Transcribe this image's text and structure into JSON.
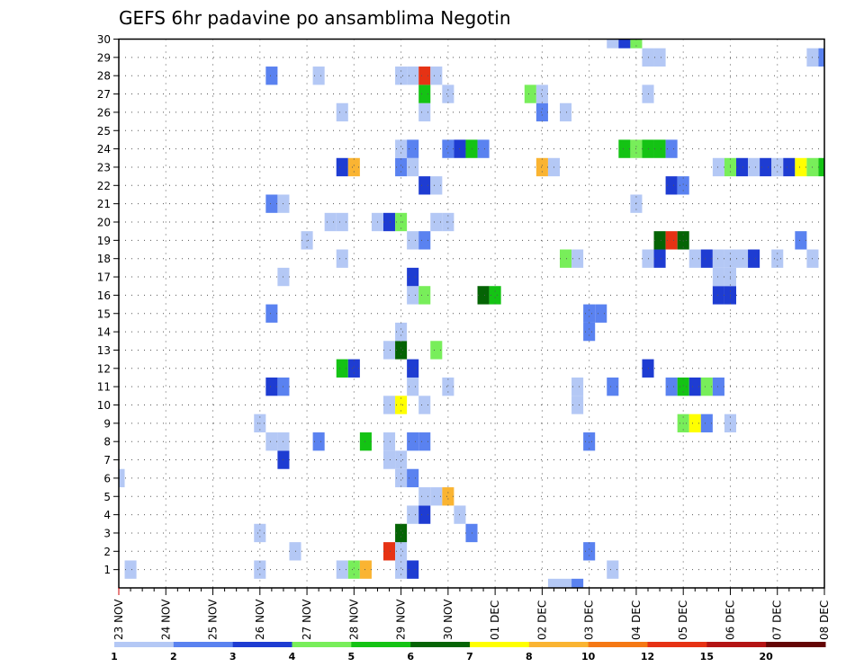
{
  "chart_data": {
    "type": "heatmap",
    "title": "GEFS 6hr padavine po ansamblima Negotin",
    "x_tick_labels": [
      "23 NOV",
      "24 NOV",
      "25 NOV",
      "26 NOV",
      "27 NOV",
      "28 NOV",
      "29 NOV",
      "30 NOV",
      "01 DEC",
      "02 DEC",
      "03 DEC",
      "04 DEC",
      "05 DEC",
      "06 DEC",
      "07 DEC",
      "08 DEC"
    ],
    "y_tick_labels": [
      "1",
      "2",
      "3",
      "4",
      "5",
      "6",
      "7",
      "8",
      "9",
      "10",
      "11",
      "12",
      "13",
      "14",
      "15",
      "16",
      "17",
      "18",
      "19",
      "20",
      "21",
      "22",
      "23",
      "24",
      "25",
      "26",
      "27",
      "28",
      "29",
      "30"
    ],
    "x_unit": "6-hour steps from 23 NOV",
    "x_range": [
      0,
      60
    ],
    "y_range": [
      0,
      30
    ],
    "grid": true,
    "color_levels": [
      {
        "label": "1",
        "color": "#b4c8f5"
      },
      {
        "label": "2",
        "color": "#5a82f0"
      },
      {
        "label": "3",
        "color": "#1e3cd2"
      },
      {
        "label": "4",
        "color": "#78ee5a"
      },
      {
        "label": "5",
        "color": "#14c314"
      },
      {
        "label": "6",
        "color": "#056405"
      },
      {
        "label": "7",
        "color": "#ffff00"
      },
      {
        "label": "8",
        "color": "#fab432"
      },
      {
        "label": "10",
        "color": "#f57814"
      },
      {
        "label": "12",
        "color": "#e63214"
      },
      {
        "label": "15",
        "color": "#b41414"
      },
      {
        "label": "20",
        "color": "#640505"
      }
    ],
    "cells": [
      [
        1,
        1,
        0
      ],
      [
        1,
        12,
        0
      ],
      [
        1,
        19,
        0
      ],
      [
        1,
        20,
        3
      ],
      [
        1,
        21,
        7
      ],
      [
        1,
        24,
        0
      ],
      [
        1,
        25,
        2
      ],
      [
        1,
        42,
        0
      ],
      [
        2,
        15,
        0
      ],
      [
        2,
        23,
        9
      ],
      [
        2,
        24,
        0
      ],
      [
        2,
        40,
        1
      ],
      [
        3,
        12,
        0
      ],
      [
        3,
        24,
        5
      ],
      [
        3,
        30,
        1
      ],
      [
        4,
        25,
        0
      ],
      [
        4,
        26,
        2
      ],
      [
        4,
        29,
        0
      ],
      [
        5,
        26,
        0
      ],
      [
        5,
        27,
        0
      ],
      [
        5,
        28,
        7
      ],
      [
        6,
        0,
        0
      ],
      [
        6,
        24,
        0
      ],
      [
        6,
        25,
        1
      ],
      [
        7,
        14,
        2
      ],
      [
        7,
        23,
        0
      ],
      [
        7,
        24,
        0
      ],
      [
        8,
        13,
        0
      ],
      [
        8,
        14,
        0
      ],
      [
        8,
        17,
        1
      ],
      [
        8,
        21,
        4
      ],
      [
        8,
        23,
        0
      ],
      [
        8,
        25,
        1
      ],
      [
        8,
        26,
        1
      ],
      [
        8,
        40,
        1
      ],
      [
        9,
        12,
        0
      ],
      [
        9,
        48,
        3
      ],
      [
        9,
        49,
        6
      ],
      [
        9,
        50,
        1
      ],
      [
        9,
        52,
        0
      ],
      [
        10,
        23,
        0
      ],
      [
        10,
        24,
        6
      ],
      [
        10,
        26,
        0
      ],
      [
        10,
        39,
        0
      ],
      [
        11,
        13,
        2
      ],
      [
        11,
        14,
        1
      ],
      [
        11,
        25,
        0
      ],
      [
        11,
        28,
        0
      ],
      [
        11,
        39,
        0
      ],
      [
        11,
        42,
        1
      ],
      [
        11,
        47,
        1
      ],
      [
        11,
        48,
        4
      ],
      [
        11,
        49,
        2
      ],
      [
        11,
        50,
        3
      ],
      [
        11,
        51,
        1
      ],
      [
        12,
        19,
        4
      ],
      [
        12,
        20,
        2
      ],
      [
        12,
        25,
        2
      ],
      [
        12,
        45,
        2
      ],
      [
        13,
        23,
        0
      ],
      [
        13,
        24,
        5
      ],
      [
        13,
        27,
        3
      ],
      [
        14,
        24,
        0
      ],
      [
        14,
        40,
        1
      ],
      [
        15,
        13,
        1
      ],
      [
        15,
        40,
        1
      ],
      [
        15,
        41,
        1
      ],
      [
        16,
        25,
        0
      ],
      [
        16,
        26,
        3
      ],
      [
        16,
        31,
        5
      ],
      [
        16,
        32,
        4
      ],
      [
        16,
        51,
        2
      ],
      [
        16,
        52,
        2
      ],
      [
        17,
        14,
        0
      ],
      [
        17,
        25,
        2
      ],
      [
        17,
        51,
        0
      ],
      [
        17,
        52,
        0
      ],
      [
        18,
        19,
        0
      ],
      [
        18,
        38,
        3
      ],
      [
        18,
        39,
        0
      ],
      [
        18,
        45,
        0
      ],
      [
        18,
        46,
        2
      ],
      [
        18,
        49,
        0
      ],
      [
        18,
        50,
        2
      ],
      [
        18,
        51,
        0
      ],
      [
        18,
        52,
        0
      ],
      [
        18,
        53,
        0
      ],
      [
        18,
        54,
        2
      ],
      [
        18,
        56,
        0
      ],
      [
        18,
        59,
        0
      ],
      [
        19,
        16,
        0
      ],
      [
        19,
        25,
        0
      ],
      [
        19,
        26,
        1
      ],
      [
        19,
        46,
        5
      ],
      [
        19,
        47,
        9
      ],
      [
        19,
        48,
        5
      ],
      [
        19,
        58,
        1
      ],
      [
        20,
        18,
        0
      ],
      [
        20,
        19,
        0
      ],
      [
        20,
        22,
        0
      ],
      [
        20,
        23,
        2
      ],
      [
        20,
        24,
        3
      ],
      [
        20,
        27,
        0
      ],
      [
        20,
        28,
        0
      ],
      [
        21,
        13,
        1
      ],
      [
        21,
        14,
        0
      ],
      [
        21,
        44,
        0
      ],
      [
        22,
        26,
        2
      ],
      [
        22,
        27,
        0
      ],
      [
        22,
        47,
        2
      ],
      [
        22,
        48,
        1
      ],
      [
        23,
        19,
        2
      ],
      [
        23,
        20,
        7
      ],
      [
        23,
        24,
        1
      ],
      [
        23,
        25,
        0
      ],
      [
        23,
        36,
        7
      ],
      [
        23,
        37,
        0
      ],
      [
        23,
        51,
        0
      ],
      [
        23,
        52,
        3
      ],
      [
        23,
        53,
        2
      ],
      [
        23,
        54,
        0
      ],
      [
        23,
        55,
        2
      ],
      [
        23,
        56,
        0
      ],
      [
        23,
        57,
        2
      ],
      [
        23,
        58,
        6
      ],
      [
        23,
        59,
        3
      ],
      [
        23,
        60,
        4
      ],
      [
        24,
        24,
        0
      ],
      [
        24,
        25,
        1
      ],
      [
        24,
        28,
        1
      ],
      [
        24,
        29,
        2
      ],
      [
        24,
        30,
        4
      ],
      [
        24,
        31,
        1
      ],
      [
        24,
        43,
        4
      ],
      [
        24,
        44,
        3
      ],
      [
        24,
        45,
        4
      ],
      [
        24,
        46,
        4
      ],
      [
        24,
        47,
        1
      ],
      [
        26,
        19,
        0
      ],
      [
        26,
        26,
        0
      ],
      [
        26,
        36,
        1
      ],
      [
        26,
        38,
        0
      ],
      [
        27,
        26,
        4
      ],
      [
        27,
        28,
        0
      ],
      [
        27,
        35,
        3
      ],
      [
        27,
        36,
        0
      ],
      [
        27,
        45,
        0
      ],
      [
        28,
        13,
        1
      ],
      [
        28,
        17,
        0
      ],
      [
        28,
        24,
        0
      ],
      [
        28,
        25,
        0
      ],
      [
        28,
        26,
        9
      ],
      [
        28,
        27,
        0
      ],
      [
        29,
        45,
        0
      ],
      [
        29,
        46,
        0
      ],
      [
        29,
        59,
        0
      ],
      [
        29,
        60,
        1
      ],
      [
        30,
        42,
        0
      ],
      [
        30,
        43,
        2
      ],
      [
        30,
        44,
        3
      ],
      [
        0,
        37,
        0
      ],
      [
        0,
        38,
        0
      ],
      [
        0,
        39,
        1
      ]
    ]
  }
}
